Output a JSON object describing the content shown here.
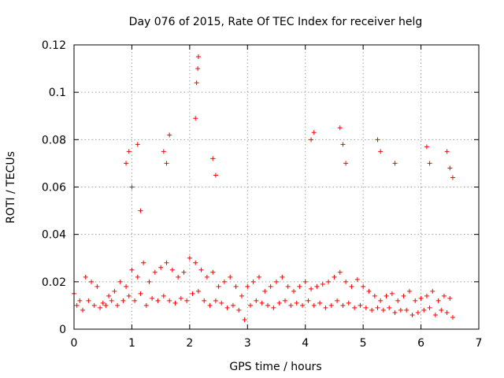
{
  "chart_data": {
    "type": "scatter",
    "title": "Day 076 of 2015, Rate Of TEC Index for receiver helg",
    "xlabel": "GPS time / hours",
    "ylabel": "ROTI / TECUs",
    "xlim": [
      0,
      7
    ],
    "ylim": [
      0,
      0.12
    ],
    "x_ticks": [
      0,
      1,
      2,
      3,
      4,
      5,
      6,
      7
    ],
    "x_tick_labels": [
      "0",
      "1",
      "2",
      "3",
      "4",
      "5",
      "6",
      "7"
    ],
    "y_ticks": [
      0,
      0.02,
      0.04,
      0.06,
      0.08,
      0.1,
      0.12
    ],
    "y_tick_labels": [
      "0",
      "0.02",
      "0.04",
      "0.06",
      "0.08",
      "0.1",
      "0.12"
    ],
    "grid": true,
    "marker": "+",
    "marker_color": "#ff0000",
    "series": [
      {
        "name": "ROTI",
        "x": [
          0.0,
          0.1,
          0.2,
          0.3,
          0.4,
          0.5,
          0.6,
          0.7,
          0.8,
          0.9,
          1.0,
          1.1,
          1.2,
          1.3,
          1.4,
          1.5,
          1.6,
          1.7,
          1.8,
          1.9,
          2.0,
          2.1,
          2.2,
          2.3,
          2.4,
          2.5,
          2.6,
          2.7,
          2.8,
          2.9,
          3.0,
          3.1,
          3.2,
          3.3,
          3.4,
          3.5,
          3.6,
          3.7,
          3.8,
          3.9,
          4.0,
          4.1,
          4.2,
          4.3,
          4.4,
          4.5,
          4.6,
          4.7,
          4.8,
          4.9,
          5.0,
          5.1,
          5.2,
          5.3,
          5.4,
          5.5,
          5.6,
          5.7,
          5.8,
          5.9,
          6.0,
          6.1,
          6.2,
          6.3,
          6.4,
          6.5,
          0.05,
          0.15,
          0.25,
          0.35,
          0.45,
          0.55,
          0.65,
          0.75,
          0.85,
          0.95,
          1.05,
          1.15,
          1.25,
          1.35,
          1.45,
          1.55,
          1.65,
          1.75,
          1.85,
          1.95,
          2.05,
          2.15,
          2.25,
          2.35,
          2.45,
          2.55,
          2.65,
          2.75,
          2.85,
          2.95,
          3.05,
          3.15,
          3.25,
          3.35,
          3.45,
          3.55,
          3.65,
          3.75,
          3.85,
          3.95,
          4.05,
          4.15,
          4.25,
          4.35,
          4.45,
          4.55,
          4.65,
          4.75,
          4.85,
          4.95,
          5.05,
          5.15,
          5.25,
          5.35,
          5.45,
          5.55,
          5.65,
          5.75,
          5.85,
          5.95,
          6.05,
          6.15,
          6.25,
          6.35,
          6.45,
          6.55,
          0.9,
          0.95,
          1.0,
          1.1,
          1.15,
          1.55,
          1.6,
          1.65,
          2.1,
          2.12,
          2.14,
          2.15,
          2.4,
          2.45,
          4.1,
          4.15,
          4.6,
          4.65,
          4.7,
          5.25,
          5.3,
          5.55,
          6.1,
          6.15,
          6.45,
          6.5,
          6.55
        ],
        "y": [
          0.015,
          0.012,
          0.022,
          0.02,
          0.018,
          0.011,
          0.014,
          0.016,
          0.02,
          0.018,
          0.025,
          0.022,
          0.028,
          0.02,
          0.024,
          0.026,
          0.028,
          0.025,
          0.022,
          0.024,
          0.03,
          0.028,
          0.025,
          0.022,
          0.024,
          0.018,
          0.02,
          0.022,
          0.018,
          0.014,
          0.018,
          0.02,
          0.022,
          0.016,
          0.018,
          0.02,
          0.022,
          0.018,
          0.016,
          0.018,
          0.02,
          0.017,
          0.018,
          0.019,
          0.02,
          0.022,
          0.024,
          0.02,
          0.018,
          0.021,
          0.018,
          0.016,
          0.014,
          0.012,
          0.014,
          0.015,
          0.012,
          0.014,
          0.016,
          0.012,
          0.013,
          0.014,
          0.016,
          0.012,
          0.014,
          0.013,
          0.01,
          0.008,
          0.012,
          0.01,
          0.009,
          0.01,
          0.012,
          0.01,
          0.012,
          0.014,
          0.012,
          0.015,
          0.01,
          0.013,
          0.012,
          0.014,
          0.012,
          0.011,
          0.013,
          0.012,
          0.015,
          0.016,
          0.012,
          0.01,
          0.012,
          0.011,
          0.009,
          0.01,
          0.008,
          0.004,
          0.01,
          0.012,
          0.011,
          0.01,
          0.009,
          0.011,
          0.012,
          0.01,
          0.011,
          0.01,
          0.012,
          0.01,
          0.011,
          0.009,
          0.01,
          0.012,
          0.01,
          0.011,
          0.009,
          0.01,
          0.009,
          0.008,
          0.009,
          0.008,
          0.009,
          0.007,
          0.008,
          0.008,
          0.006,
          0.007,
          0.008,
          0.009,
          0.006,
          0.008,
          0.007,
          0.005,
          0.07,
          0.075,
          0.06,
          0.078,
          0.05,
          0.075,
          0.07,
          0.082,
          0.089,
          0.104,
          0.11,
          0.115,
          0.072,
          0.065,
          0.08,
          0.083,
          0.085,
          0.078,
          0.07,
          0.08,
          0.075,
          0.07,
          0.077,
          0.07,
          0.075,
          0.068,
          0.064
        ]
      }
    ]
  }
}
